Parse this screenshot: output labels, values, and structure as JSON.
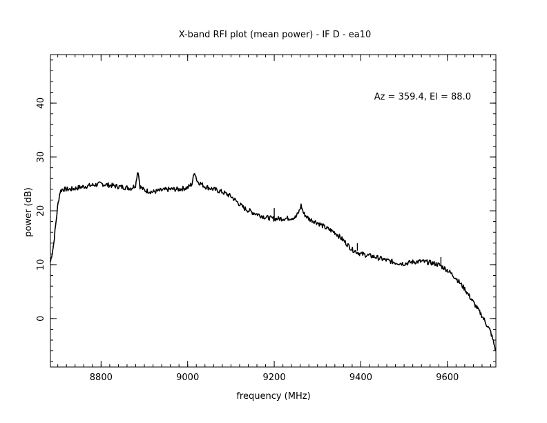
{
  "chart_data": {
    "type": "line",
    "title": "X-band RFI plot (mean power) - IF D - ea10",
    "xlabel": "frequency (MHz)",
    "ylabel": "power (dB)",
    "annotation": "Az = 359.4, El = 88.0",
    "xlim": [
      8683,
      9712
    ],
    "ylim": [
      -9,
      49
    ],
    "xticks": [
      8800,
      9000,
      9200,
      9400,
      9600
    ],
    "yticks": [
      0,
      10,
      20,
      30,
      40
    ],
    "xminor_step": 20,
    "yminor_step": 2,
    "grid": false,
    "line_color": "#000000",
    "series": [
      {
        "x": [
          8683,
          8690,
          8700,
          8705,
          8710,
          8730,
          8760,
          8800,
          8840,
          8870,
          8880,
          8885,
          8890,
          8900,
          8920,
          8940,
          8960,
          8980,
          9000,
          9010,
          9016,
          9022,
          9040,
          9060,
          9080,
          9100,
          9130,
          9150,
          9180,
          9200,
          9230,
          9250,
          9258,
          9262,
          9268,
          9280,
          9300,
          9320,
          9340,
          9360,
          9380,
          9400,
          9430,
          9460,
          9480,
          9500,
          9520,
          9540,
          9560,
          9580,
          9600,
          9620,
          9640,
          9660,
          9680,
          9700,
          9712
        ],
        "y": [
          10.5,
          13.5,
          21,
          23.5,
          24,
          24,
          24.5,
          25,
          24.5,
          24.2,
          24.8,
          27.7,
          24.5,
          23.8,
          23.5,
          23.8,
          24,
          24,
          24.3,
          25,
          27.3,
          25.5,
          24.5,
          24,
          23.5,
          22.7,
          20.5,
          19.7,
          18.8,
          18.5,
          18.6,
          18.8,
          20,
          21,
          19.5,
          18.5,
          17.8,
          16.8,
          16,
          14.5,
          12.8,
          12,
          11.5,
          10.8,
          10.4,
          10.2,
          10.5,
          10.6,
          10.4,
          10,
          9,
          7.5,
          5.5,
          3,
          0.5,
          -2.5,
          -6
        ]
      }
    ],
    "spikes": [
      {
        "x": 9200,
        "base": 18.6,
        "top": 20.5
      },
      {
        "x": 9392,
        "base": 12.6,
        "top": 14.0
      },
      {
        "x": 9585,
        "base": 10.0,
        "top": 11.4
      }
    ]
  }
}
